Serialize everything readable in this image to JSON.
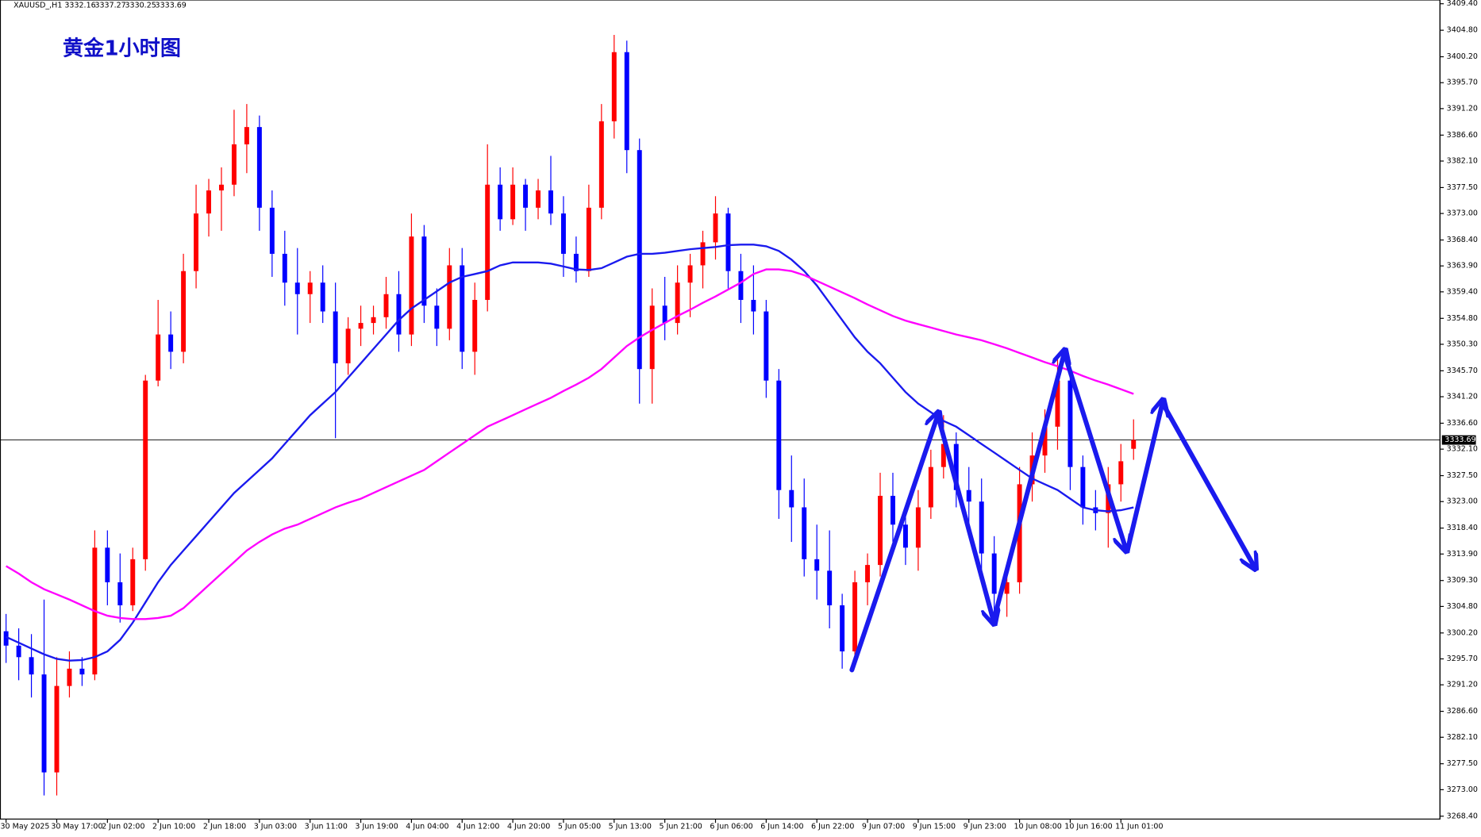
{
  "chart_data": {
    "type": "candlestick",
    "title": "黄金1小时图",
    "symbol": "XAUUSD_,H1",
    "x": [
      "30 May 2025",
      null,
      null,
      null,
      "30 May 17:00",
      null,
      null,
      null,
      "2 Jun 02:00",
      null,
      null,
      null,
      "2 Jun 10:00",
      null,
      null,
      null,
      "2 Jun 18:00",
      null,
      null,
      null,
      "3 Jun 03:00",
      null,
      null,
      null,
      "3 Jun 11:00",
      null,
      null,
      null,
      "3 Jun 19:00",
      null,
      null,
      null,
      "4 Jun 04:00",
      null,
      null,
      null,
      "4 Jun 12:00",
      null,
      null,
      null,
      "4 Jun 20:00",
      null,
      null,
      null,
      "5 Jun 05:00",
      null,
      null,
      null,
      "5 Jun 13:00",
      null,
      null,
      null,
      "5 Jun 21:00",
      null,
      null,
      null,
      "6 Jun 06:00",
      null,
      null,
      null,
      "6 Jun 14:00",
      null,
      null,
      null,
      "6 Jun 22:00",
      null,
      null,
      null,
      "9 Jun 07:00",
      null,
      null,
      null,
      "9 Jun 15:00",
      null,
      null,
      null,
      "9 Jun 23:00",
      null,
      null,
      null,
      "10 Jun 08:00",
      null,
      null,
      null,
      "10 Jun 16:00",
      null,
      null,
      null,
      "11 Jun 01:00",
      null
    ],
    "open": [
      3300.5,
      3298,
      3296,
      3293,
      3276,
      3291,
      3294,
      3293,
      3315,
      3309,
      3305,
      3313,
      3344,
      3352,
      3349,
      3363,
      3373,
      3377,
      3378,
      3385,
      3388,
      3374,
      3366,
      3361,
      3359,
      3361,
      3356,
      3347,
      3353,
      3354,
      3355,
      3359,
      3352,
      3369,
      3357,
      3353,
      3364,
      3349,
      3358,
      3378,
      3372,
      3378,
      3374,
      3377,
      3373,
      3366,
      3363,
      3374,
      3389,
      3401,
      3384,
      3346,
      3357,
      3354,
      3361,
      3364,
      3368,
      3373,
      3363,
      3358,
      3356,
      3344,
      3325,
      3322,
      3313,
      3311,
      3305,
      3297,
      3309,
      3312,
      3324,
      3319,
      3315,
      3322,
      3329,
      3333,
      3325,
      3323,
      3314,
      3307,
      3309,
      3326,
      3331,
      3336,
      3344,
      3329,
      3322,
      3321,
      3326,
      3332.16
    ],
    "high": [
      3303.5,
      3301,
      3300,
      3306,
      3296,
      3297,
      3296,
      3318,
      3318,
      3314,
      3315,
      3345,
      3358,
      3356,
      3366,
      3378,
      3379,
      3381,
      3391,
      3392,
      3390,
      3377,
      3370,
      3367,
      3363,
      3364,
      3361,
      3355,
      3357,
      3357,
      3362,
      3363,
      3373,
      3371,
      3360,
      3367,
      3367,
      3361,
      3385,
      3381,
      3381,
      3379,
      3379,
      3383,
      3376,
      3369,
      3378,
      3392,
      3404,
      3403,
      3386,
      3360,
      3362,
      3364,
      3366,
      3370,
      3376,
      3374,
      3366,
      3364,
      3358,
      3346,
      3331,
      3327,
      3319,
      3318,
      3307,
      3311,
      3314,
      3328,
      3328,
      3322,
      3325,
      3332,
      3338,
      3335,
      3329,
      3327,
      3317,
      3312,
      3329,
      3335,
      3339,
      3348,
      3346,
      3331,
      3325,
      3329,
      3333,
      3337.27
    ],
    "low": [
      3295,
      3292,
      3289,
      3272,
      3272,
      3289,
      3291,
      3292,
      3305,
      3302,
      3304,
      3311,
      3343,
      3346,
      3347,
      3360,
      3369,
      3370,
      3376,
      3380,
      3370,
      3362,
      3357,
      3352,
      3354,
      3354,
      3334,
      3345,
      3350,
      3352,
      3353,
      3349,
      3350,
      3354,
      3350,
      3351,
      3346,
      3345,
      3356,
      3370,
      3371,
      3370,
      3372,
      3371,
      3362,
      3361,
      3362,
      3372,
      3386,
      3380,
      3340,
      3340,
      3351,
      3352,
      3355,
      3360,
      3365,
      3360,
      3354,
      3352,
      3341,
      3320,
      3316,
      3310,
      3306,
      3301,
      3294,
      3295,
      3305,
      3310,
      3316,
      3312,
      3311,
      3320,
      3327,
      3322,
      3319,
      3311,
      3302,
      3303,
      3307,
      3323,
      3328,
      3332,
      3325,
      3319,
      3318,
      3315,
      3323,
      3330.25
    ],
    "close": [
      3298,
      3296,
      3293,
      3276,
      3291,
      3294,
      3293,
      3315,
      3309,
      3305,
      3313,
      3344,
      3352,
      3349,
      3363,
      3373,
      3377,
      3378,
      3385,
      3388,
      3374,
      3366,
      3361,
      3359,
      3361,
      3356,
      3347,
      3353,
      3354,
      3355,
      3359,
      3352,
      3369,
      3357,
      3353,
      3364,
      3349,
      3358,
      3378,
      3372,
      3378,
      3374,
      3377,
      3373,
      3366,
      3363,
      3374,
      3389,
      3401,
      3384,
      3346,
      3357,
      3354,
      3361,
      3364,
      3368,
      3373,
      3363,
      3358,
      3356,
      3344,
      3325,
      3322,
      3313,
      3311,
      3305,
      3297,
      3309,
      3312,
      3324,
      3319,
      3315,
      3322,
      3329,
      3333,
      3325,
      3323,
      3314,
      3307,
      3309,
      3326,
      3331,
      3336,
      3344,
      3329,
      3322,
      3321,
      3326,
      3330,
      3333.69
    ],
    "up_color": "#ff0000",
    "down_color": "#0000ff",
    "series": [
      {
        "color": "#1a1aee",
        "values": [
          3299.5,
          3298.5,
          3297.5,
          3296.5,
          3295.7,
          3295.4,
          3295.5,
          3296,
          3297,
          3299,
          3302,
          3305.5,
          3309,
          3312,
          3314.5,
          3317,
          3319.5,
          3322,
          3324.5,
          3326.5,
          3328.5,
          3330.5,
          3333,
          3335.5,
          3338,
          3340,
          3342,
          3344.5,
          3347,
          3349.5,
          3352,
          3354.5,
          3356.5,
          3358,
          3359.5,
          3361,
          3362,
          3362.5,
          3363,
          3364,
          3364.5,
          3364.5,
          3364.5,
          3364.3,
          3363.8,
          3363.3,
          3363.2,
          3363.5,
          3364.5,
          3365.5,
          3366,
          3366,
          3366.2,
          3366.5,
          3366.8,
          3367,
          3367.2,
          3367.5,
          3367.6,
          3367.6,
          3367.3,
          3366.5,
          3365,
          3363,
          3360.5,
          3357.5,
          3354.5,
          3351.5,
          3349,
          3347,
          3344.5,
          3342,
          3340,
          3338.5,
          3337,
          3336,
          3334.5,
          3333,
          3331.5,
          3330,
          3328.5,
          3327,
          3326,
          3325,
          3323.5,
          3322,
          3321.5,
          3321.3,
          3321.5,
          3322
        ]
      },
      {
        "color": "#ff00ff",
        "values": [
          3311.8,
          3310.5,
          3309,
          3307.8,
          3306.9,
          3306,
          3305,
          3304,
          3303.2,
          3302.8,
          3302.6,
          3302.6,
          3302.8,
          3303.2,
          3304.5,
          3306.5,
          3308.5,
          3310.5,
          3312.5,
          3314.5,
          3316,
          3317.3,
          3318.3,
          3319,
          3320,
          3321,
          3322,
          3322.8,
          3323.5,
          3324.5,
          3325.5,
          3326.5,
          3327.5,
          3328.5,
          3330,
          3331.5,
          3333,
          3334.5,
          3336,
          3337,
          3338,
          3339,
          3340,
          3341,
          3342.2,
          3343.3,
          3344.5,
          3346,
          3348,
          3350,
          3351.5,
          3352.8,
          3354,
          3355.2,
          3356.3,
          3357.5,
          3358.6,
          3359.8,
          3361,
          3362.5,
          3363.3,
          3363.3,
          3363,
          3362.3,
          3361.3,
          3360.3,
          3359.3,
          3358.3,
          3357.2,
          3356.2,
          3355.2,
          3354.4,
          3353.8,
          3353.2,
          3352.6,
          3352,
          3351.5,
          3351,
          3350.3,
          3349.6,
          3348.8,
          3348,
          3347.2,
          3346.5,
          3345.7,
          3344.8,
          3344,
          3343.3,
          3342.5,
          3341.7
        ]
      }
    ],
    "current_price": 3333.69,
    "ylim": [
      3267.9,
      3410.05
    ],
    "yticks": [
      {
        "value": 3409.4,
        "label": "3409.40"
      },
      {
        "value": 3404.8,
        "label": "3404.80"
      },
      {
        "value": 3400.2,
        "label": "3400.20"
      },
      {
        "value": 3395.7,
        "label": "3395.70"
      },
      {
        "value": 3391.2,
        "label": "3391.20"
      },
      {
        "value": 3386.6,
        "label": "3386.60"
      },
      {
        "value": 3382.1,
        "label": "3382.10"
      },
      {
        "value": 3377.5,
        "label": "3377.50"
      },
      {
        "value": 3373,
        "label": "3373.00"
      },
      {
        "value": 3368.4,
        "label": "3368.40"
      },
      {
        "value": 3363.9,
        "label": "3363.90"
      },
      {
        "value": 3359.4,
        "label": "3359.40"
      },
      {
        "value": 3354.8,
        "label": "3354.80"
      },
      {
        "value": 3350.3,
        "label": "3350.30"
      },
      {
        "value": 3345.7,
        "label": "3345.70"
      },
      {
        "value": 3341.2,
        "label": "3341.20"
      },
      {
        "value": 3336.6,
        "label": "3336.60"
      },
      {
        "value": 3332.1,
        "label": "3332.10"
      },
      {
        "value": 3327.5,
        "label": "3327.50"
      },
      {
        "value": 3323,
        "label": "3323.00"
      },
      {
        "value": 3318.4,
        "label": "3318.40"
      },
      {
        "value": 3313.9,
        "label": "3313.90"
      },
      {
        "value": 3309.3,
        "label": "3309.30"
      },
      {
        "value": 3304.8,
        "label": "3304.80"
      },
      {
        "value": 3300.2,
        "label": "3300.20"
      },
      {
        "value": 3295.7,
        "label": "3295.70"
      },
      {
        "value": 3291.2,
        "label": "3291.20"
      },
      {
        "value": 3286.6,
        "label": "3286.60"
      },
      {
        "value": 3282.1,
        "label": "3282.10"
      },
      {
        "value": 3277.5,
        "label": "3277.50"
      },
      {
        "value": 3273,
        "label": "3273.00"
      },
      {
        "value": 3268.4,
        "label": "3268.40"
      }
    ]
  }
}
